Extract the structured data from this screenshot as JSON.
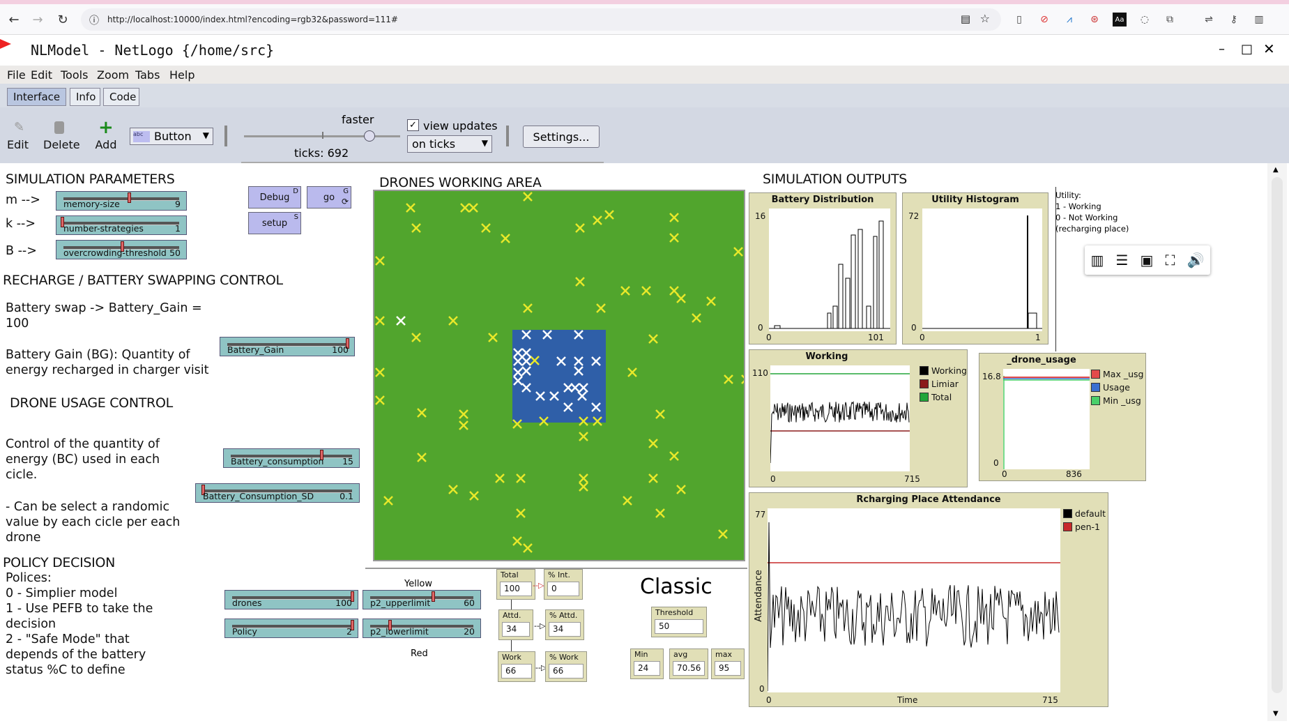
{
  "browser": {
    "url": "http://localhost:10000/index.html?encoding=rgb32&password=111#"
  },
  "window": {
    "title": "NLModel - NetLogo {/home/src}"
  },
  "menu": [
    "File",
    "Edit",
    "Tools",
    "Zoom",
    "Tabs",
    "Help"
  ],
  "tabs": [
    "Interface",
    "Info",
    "Code"
  ],
  "toolbar": {
    "edit": "Edit",
    "delete": "Delete",
    "add": "Add",
    "widget_type": "Button",
    "speed_label": "faster",
    "ticks": "ticks: 692",
    "view_updates": "view updates",
    "update_mode": "on ticks",
    "settings": "Settings..."
  },
  "params": {
    "heading": "SIMULATION PARAMETERS",
    "m_label": "m -->",
    "k_label": "k -->",
    "b_label": "B -->",
    "sliders": [
      {
        "name": "memory-size",
        "value": "9",
        "pos": 0.55
      },
      {
        "name": "number-strategies",
        "value": "1",
        "pos": 0.0
      },
      {
        "name": "overcrowding-threshold",
        "value": "50",
        "pos": 0.5
      }
    ]
  },
  "buttons": {
    "debug": "Debug",
    "debug_key": "D",
    "go": "go",
    "go_key": "G",
    "setup": "setup",
    "setup_key": "S"
  },
  "recharge": {
    "heading": "RECHARGE / BATTERY SWAPPING CONTROL",
    "text1": "Battery swap  -> Battery_Gain = 100",
    "text2": "Battery Gain (BG): Quantity of energy recharged in charger visit",
    "slider": {
      "name": "Battery_Gain",
      "value": "100",
      "pos": 1.0
    }
  },
  "usage": {
    "heading": "DRONE USAGE CONTROL",
    "text1": "Control of the quantity of energy (BC) used in each cicle.",
    "text2": "- Can be select a randomic value by each cicle per each drone",
    "slider1": {
      "name": "Battery_consumption",
      "value": "15",
      "pos": 0.75
    },
    "slider2": {
      "name": "Battery_Consumption_SD",
      "value": "0.1",
      "pos": 0.0
    }
  },
  "policy": {
    "heading": "POLICY DECISION",
    "text": "Polices:\n0 - Simplier model\n1 - Use PEFB to take the decision\n2 - \"Safe Mode\" that depends of the battery status %C to define",
    "drones": {
      "name": "drones",
      "value": "100",
      "pos": 1.0
    },
    "policy": {
      "name": "Policy",
      "value": "2",
      "pos": 1.0
    },
    "upper": {
      "name": "p2_upperlimit",
      "value": "60",
      "pos": 0.6
    },
    "lower": {
      "name": "p2_lowerlimit",
      "value": "20",
      "pos": 0.2
    },
    "yellow": "Yellow",
    "red": "Red"
  },
  "world": {
    "heading": "DRONES WORKING AREA"
  },
  "monitors": {
    "total": {
      "label": "Total",
      "value": "100"
    },
    "pint": {
      "label": "% Int.",
      "value": "0"
    },
    "attd": {
      "label": "Attd.",
      "value": "34"
    },
    "pattd": {
      "label": "% Attd.",
      "value": "34"
    },
    "work": {
      "label": "Work",
      "value": "66"
    },
    "pwork": {
      "label": "% Work",
      "value": "66"
    },
    "threshold": {
      "label": "Threshold",
      "value": "50"
    },
    "min": {
      "label": "Min",
      "value": "24"
    },
    "avg": {
      "label": "avg",
      "value": "70.56"
    },
    "max": {
      "label": "max",
      "value": "95"
    },
    "classic": "Classic"
  },
  "outputs": {
    "heading": "SIMULATION OUTPUTS",
    "utility_note": "Utility:\n1 - Working\n0 - Not Working\n(recharging place)"
  },
  "chart_data": [
    {
      "type": "bar",
      "title": "Battery Distribution",
      "xlim": [
        0,
        101
      ],
      "ylim": [
        0,
        16
      ],
      "colors": {
        "bars": "#000000"
      }
    },
    {
      "type": "bar",
      "title": "Utility Histogram",
      "xlim": [
        0,
        1
      ],
      "ylim": [
        0,
        72
      ]
    },
    {
      "type": "line",
      "title": "Working",
      "xlim": [
        0,
        715
      ],
      "ylim": [
        0,
        110
      ],
      "series": [
        {
          "name": "Working",
          "color": "#000000"
        },
        {
          "name": "Limiar",
          "color": "#8b1a1a"
        },
        {
          "name": "Total",
          "color": "#22a63a"
        }
      ]
    },
    {
      "type": "line",
      "title": "_drone_usage",
      "xlim": [
        0,
        836
      ],
      "ylim": [
        0,
        16.8
      ],
      "series": [
        {
          "name": "Max _usg",
          "color": "#e34a4a"
        },
        {
          "name": "Usage",
          "color": "#3a6fd0"
        },
        {
          "name": "Min _usg",
          "color": "#4ad06a"
        }
      ]
    },
    {
      "type": "line",
      "title": "Rcharging Place Attendance",
      "xlabel": "Time",
      "ylabel": "Attendance",
      "xlim": [
        0,
        715
      ],
      "ylim": [
        0,
        77
      ],
      "series": [
        {
          "name": "default",
          "color": "#000000"
        },
        {
          "name": "pen-1",
          "color": "#c72a2a"
        }
      ]
    }
  ]
}
